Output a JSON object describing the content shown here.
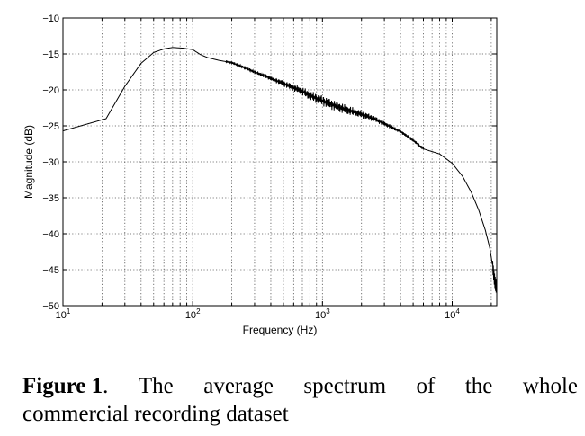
{
  "chart_data": {
    "type": "line",
    "title": "",
    "xlabel": "Frequency (Hz)",
    "ylabel": "Magnitude (dB)",
    "xscale": "log",
    "xlim": [
      10,
      22050
    ],
    "ylim": [
      -50,
      -10
    ],
    "grid": true,
    "x_ticks": [
      {
        "base": "10",
        "exp": "1"
      },
      {
        "base": "10",
        "exp": "2"
      },
      {
        "base": "10",
        "exp": "3"
      },
      {
        "base": "10",
        "exp": "4"
      }
    ],
    "y_ticks": [
      "−10",
      "−15",
      "−20",
      "−25",
      "−30",
      "−35",
      "−40",
      "−45",
      "−50"
    ],
    "series": [
      {
        "x": [
          10,
          21.5,
          30,
          40,
          50,
          60,
          70,
          85,
          100,
          115,
          130,
          160,
          200,
          250,
          300,
          400,
          500,
          600,
          700,
          800,
          1000,
          1200,
          1500,
          2000,
          2500,
          3000,
          4000,
          5000,
          6000,
          8000,
          10000,
          12000,
          14000,
          16000,
          18000,
          19500,
          20500,
          21000,
          21500,
          22050
        ],
        "y": [
          -25.7,
          -24.0,
          -19.5,
          -16.3,
          -14.8,
          -14.3,
          -14.1,
          -14.2,
          -14.4,
          -15.1,
          -15.5,
          -15.9,
          -16.2,
          -16.9,
          -17.5,
          -18.4,
          -19.1,
          -19.7,
          -20.2,
          -20.8,
          -21.5,
          -22.1,
          -22.7,
          -23.4,
          -24.0,
          -24.7,
          -25.8,
          -27.0,
          -28.2,
          -28.9,
          -30.2,
          -32.0,
          -34.2,
          -36.7,
          -39.5,
          -42.0,
          -44.5,
          -46.0,
          -47.0,
          -47.5
        ]
      }
    ]
  },
  "caption": {
    "label": "Figure 1",
    "line1_words": [
      "The",
      "average",
      "spectrum",
      "of",
      "the",
      "whole"
    ],
    "line2": "commercial recording dataset"
  }
}
